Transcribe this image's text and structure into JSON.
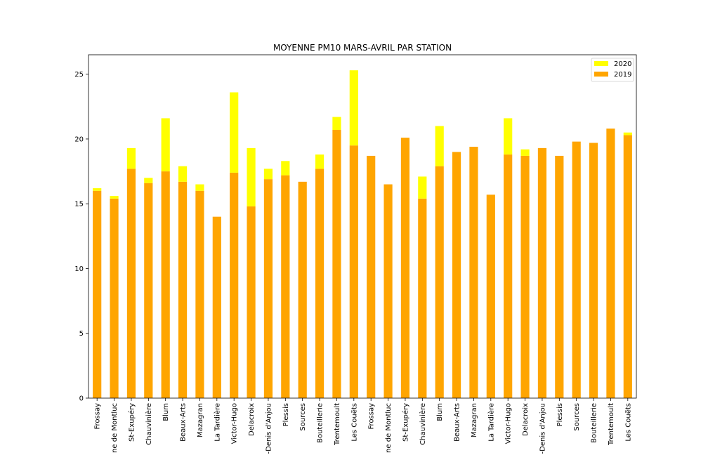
{
  "chart_data": {
    "type": "bar",
    "stacked": true,
    "title": "MOYENNE PM10 MARS-AVRIL PAR STATION",
    "xlabel": "",
    "ylabel": "",
    "ylim": [
      0,
      26.5
    ],
    "yticks": [
      0,
      5,
      10,
      15,
      20,
      25
    ],
    "grid": false,
    "legend_position": "top-right",
    "categories": [
      "Frossay",
      "Bouaye/Bougon/Chapelle de Montluc",
      "St-Exupéry",
      "Chauvinière",
      "Blum",
      "Beaux-Arts",
      "Mazagran",
      "La Tardière",
      "Victor-Hugo",
      "Delacroix",
      "St-Denis d'Anjou",
      "Plessis",
      "Sources",
      "Bouteillerie",
      "Trentemoult",
      "Les Couëts",
      "Frossay",
      "Bouaye/Bougon/Chapelle de Montluc",
      "St-Exupéry",
      "Chauvinière",
      "Blum",
      "Beaux-Arts",
      "Mazagran",
      "La Tardière",
      "Victor-Hugo",
      "Delacroix",
      "St-Denis d'Anjou",
      "Plessis",
      "Sources",
      "Bouteillerie",
      "Trentemoult",
      "Les Couëts"
    ],
    "category_display": [
      "Frossay",
      "ne de Montluc",
      "St-Exupéry",
      "Chauvinière",
      "Blum",
      "Beaux-Arts",
      "Mazagran",
      "La Tardière",
      "Victor-Hugo",
      "Delacroix",
      "-Denis d'Anjou",
      "Plessis",
      "Sources",
      "Bouteillerie",
      "Trentemoult",
      "Les Couëts",
      "Frossay",
      "ne de Montluc",
      "St-Exupéry",
      "Chauvinière",
      "Blum",
      "Beaux-Arts",
      "Mazagran",
      "La Tardière",
      "Victor-Hugo",
      "Delacroix",
      "-Denis d'Anjou",
      "Plessis",
      "Sources",
      "Bouteillerie",
      "Trentemoult",
      "Les Couëts"
    ],
    "series": [
      {
        "name": "2019",
        "color": "#FFA500",
        "values": [
          16.0,
          15.4,
          17.7,
          16.6,
          17.5,
          16.7,
          16.0,
          14.0,
          17.4,
          14.8,
          16.9,
          17.2,
          16.7,
          17.7,
          20.7,
          19.5,
          18.7,
          16.5,
          20.1,
          15.4,
          17.9,
          19.0,
          19.4,
          15.7,
          18.8,
          18.7,
          19.3,
          18.7,
          19.8,
          19.7,
          20.8,
          20.3
        ]
      },
      {
        "name": "2020",
        "color": "#FFFF00",
        "values": [
          0.2,
          0.2,
          1.6,
          0.4,
          4.1,
          1.2,
          0.5,
          0.0,
          6.2,
          4.5,
          0.8,
          1.1,
          0.0,
          1.1,
          1.0,
          5.8,
          0.0,
          0.0,
          0.0,
          1.7,
          3.1,
          0.0,
          0.0,
          0.0,
          2.8,
          0.5,
          0.0,
          0.0,
          0.0,
          0.0,
          0.0,
          0.2
        ]
      }
    ]
  }
}
